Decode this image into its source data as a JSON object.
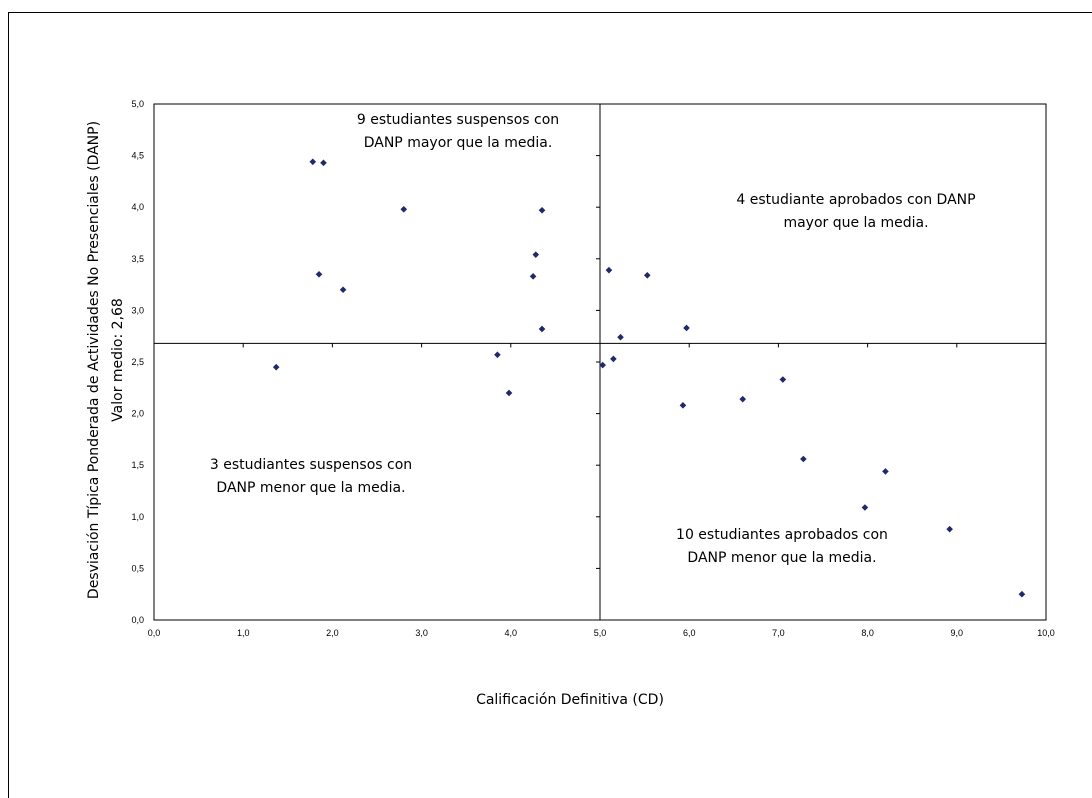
{
  "chart_data": {
    "type": "scatter",
    "xlabel": "Calificación Definitiva (CD)",
    "ylabel": "Desviación Típica Ponderada de Actividades No Presenciales (DANP)",
    "ylabel2": "Valor medio: 2,68",
    "xlim": [
      0,
      10
    ],
    "ylim": [
      0,
      5
    ],
    "x_ticks": [
      "0,0",
      "1,0",
      "2,0",
      "3,0",
      "4,0",
      "5,0",
      "6,0",
      "7,0",
      "8,0",
      "9,0",
      "10,0"
    ],
    "y_ticks": [
      "0,0",
      "0,5",
      "1,0",
      "1,5",
      "2,0",
      "2,5",
      "3,0",
      "3,5",
      "4,0",
      "4,5",
      "5,0"
    ],
    "reference_lines": {
      "x": 5.0,
      "y": 2.68
    },
    "marker_color": "#1f2a6b",
    "grid": false,
    "points": [
      {
        "x": 1.78,
        "y": 4.44
      },
      {
        "x": 1.9,
        "y": 4.43
      },
      {
        "x": 2.8,
        "y": 3.98
      },
      {
        "x": 4.35,
        "y": 3.97
      },
      {
        "x": 4.28,
        "y": 3.54
      },
      {
        "x": 1.85,
        "y": 3.35
      },
      {
        "x": 4.25,
        "y": 3.33
      },
      {
        "x": 2.12,
        "y": 3.2
      },
      {
        "x": 4.35,
        "y": 2.82
      },
      {
        "x": 5.1,
        "y": 3.39
      },
      {
        "x": 5.53,
        "y": 3.34
      },
      {
        "x": 5.97,
        "y": 2.83
      },
      {
        "x": 5.23,
        "y": 2.74
      },
      {
        "x": 1.37,
        "y": 2.45
      },
      {
        "x": 3.85,
        "y": 2.57
      },
      {
        "x": 3.98,
        "y": 2.2
      },
      {
        "x": 5.15,
        "y": 2.53
      },
      {
        "x": 5.03,
        "y": 2.47
      },
      {
        "x": 7.05,
        "y": 2.33
      },
      {
        "x": 6.6,
        "y": 2.14
      },
      {
        "x": 5.93,
        "y": 2.08
      },
      {
        "x": 7.28,
        "y": 1.56
      },
      {
        "x": 8.2,
        "y": 1.44
      },
      {
        "x": 7.97,
        "y": 1.09
      },
      {
        "x": 8.92,
        "y": 0.88
      },
      {
        "x": 9.73,
        "y": 0.25
      }
    ],
    "annotations": [
      {
        "lines": [
          "9 estudiantes  suspensos  con",
          "DANP mayor que la media."
        ],
        "quadrant": "top-left"
      },
      {
        "lines": [
          "4 estudiante aprobados con DANP",
          "mayor que la media."
        ],
        "quadrant": "top-right"
      },
      {
        "lines": [
          "3 estudiantes  suspensos con",
          "DANP menor que la media."
        ],
        "quadrant": "bottom-left"
      },
      {
        "lines": [
          "10 estudiantes  aprobados con",
          "DANP menor que la media."
        ],
        "quadrant": "bottom-right"
      }
    ]
  }
}
